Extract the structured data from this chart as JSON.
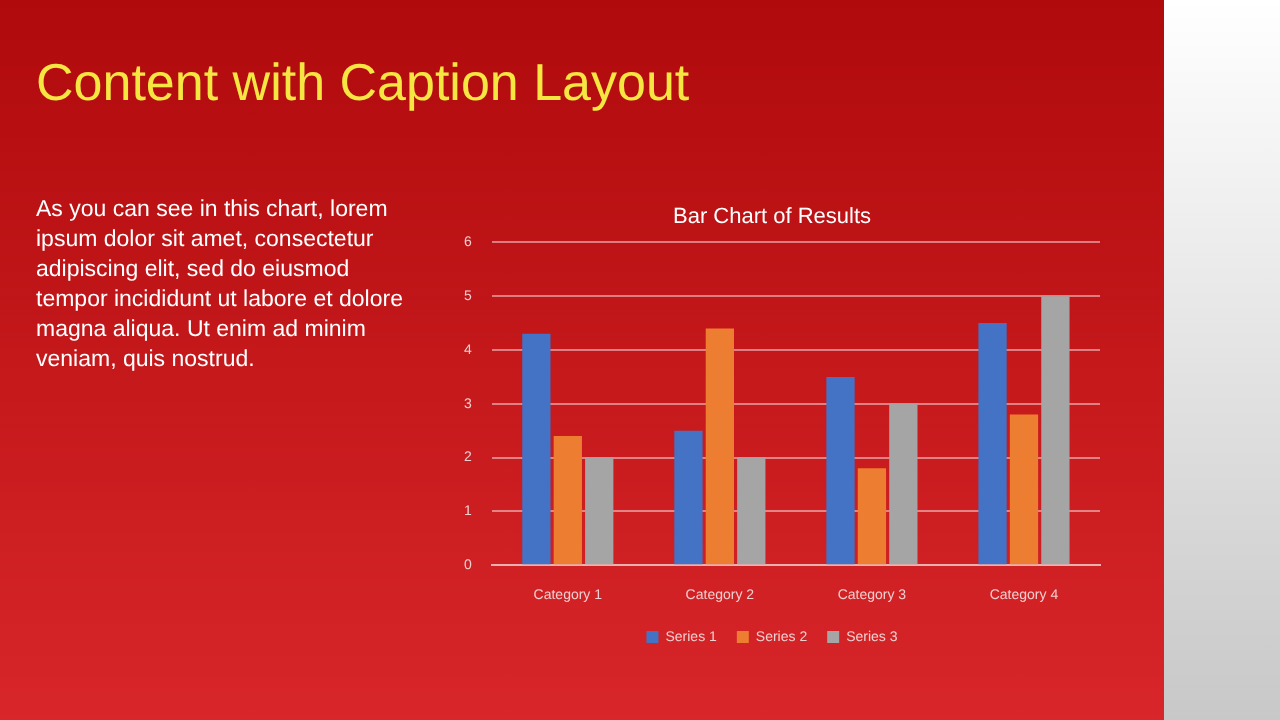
{
  "chart_data": {
    "type": "bar",
    "title": "Content with Caption Layout",
    "subtitle": "Bar Chart of Results",
    "annotations": [
      "As you can see in this chart, lorem ipsum dolor sit amet, consectetur adipiscing elit, sed do eiusmod tempor incididunt ut labore et dolore magna aliqua. Ut enim ad minim veniam, quis nostrud."
    ],
    "categories": [
      "Category 1",
      "Category 2",
      "Category 3",
      "Category 4"
    ],
    "series": [
      {
        "name": "Series 1",
        "color": "#4472c4",
        "values": [
          4.3,
          2.5,
          3.5,
          4.5
        ]
      },
      {
        "name": "Series 2",
        "color": "#ed7d31",
        "values": [
          2.4,
          4.4,
          1.8,
          2.8
        ]
      },
      {
        "name": "Series 3",
        "color": "#a5a5a5",
        "values": [
          2,
          2,
          3,
          5
        ]
      }
    ],
    "ylim": [
      0,
      6
    ],
    "yticks": [
      0,
      1,
      2,
      3,
      4,
      5,
      6
    ],
    "grid": "y",
    "legend": "bottom"
  }
}
